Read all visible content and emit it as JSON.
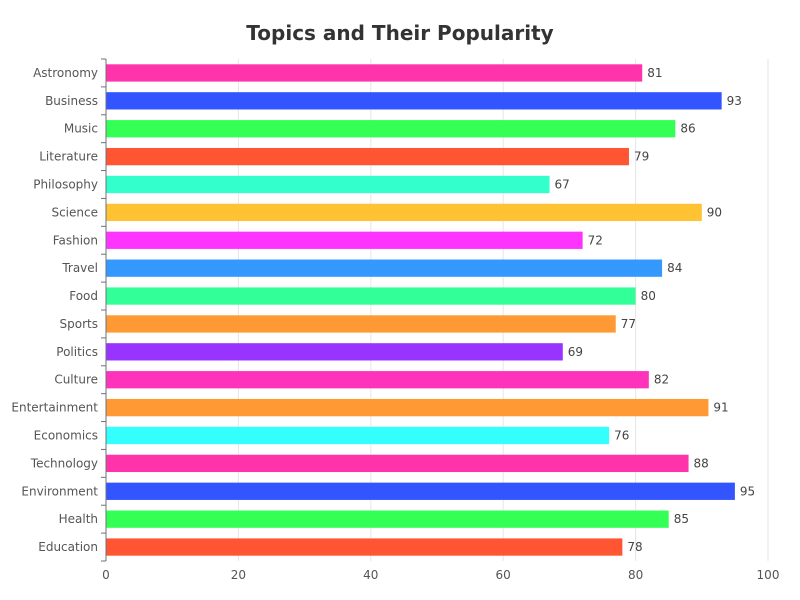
{
  "chart_data": {
    "type": "bar",
    "orientation": "horizontal",
    "title": "Topics and Their Popularity",
    "categories": [
      "Astronomy",
      "Business",
      "Music",
      "Literature",
      "Philosophy",
      "Science",
      "Fashion",
      "Travel",
      "Food",
      "Sports",
      "Politics",
      "Culture",
      "Entertainment",
      "Economics",
      "Technology",
      "Environment",
      "Health",
      "Education"
    ],
    "values": [
      81,
      93,
      86,
      79,
      67,
      90,
      72,
      84,
      80,
      77,
      69,
      82,
      91,
      76,
      88,
      95,
      85,
      78
    ],
    "colors": [
      "#ff33aa",
      "#3355ff",
      "#33ff55",
      "#ff5533",
      "#33ffcc",
      "#ffc233",
      "#ff33ff",
      "#3399ff",
      "#33ff99",
      "#ff9933",
      "#9933ff",
      "#ff33bb",
      "#ff9933",
      "#33ffff",
      "#ff33aa",
      "#3355ff",
      "#33ff55",
      "#ff5533"
    ],
    "xlim": [
      0,
      100
    ],
    "x_ticks": [
      0,
      20,
      40,
      60,
      80,
      100
    ],
    "grid": true,
    "xlabel": "",
    "ylabel": ""
  }
}
